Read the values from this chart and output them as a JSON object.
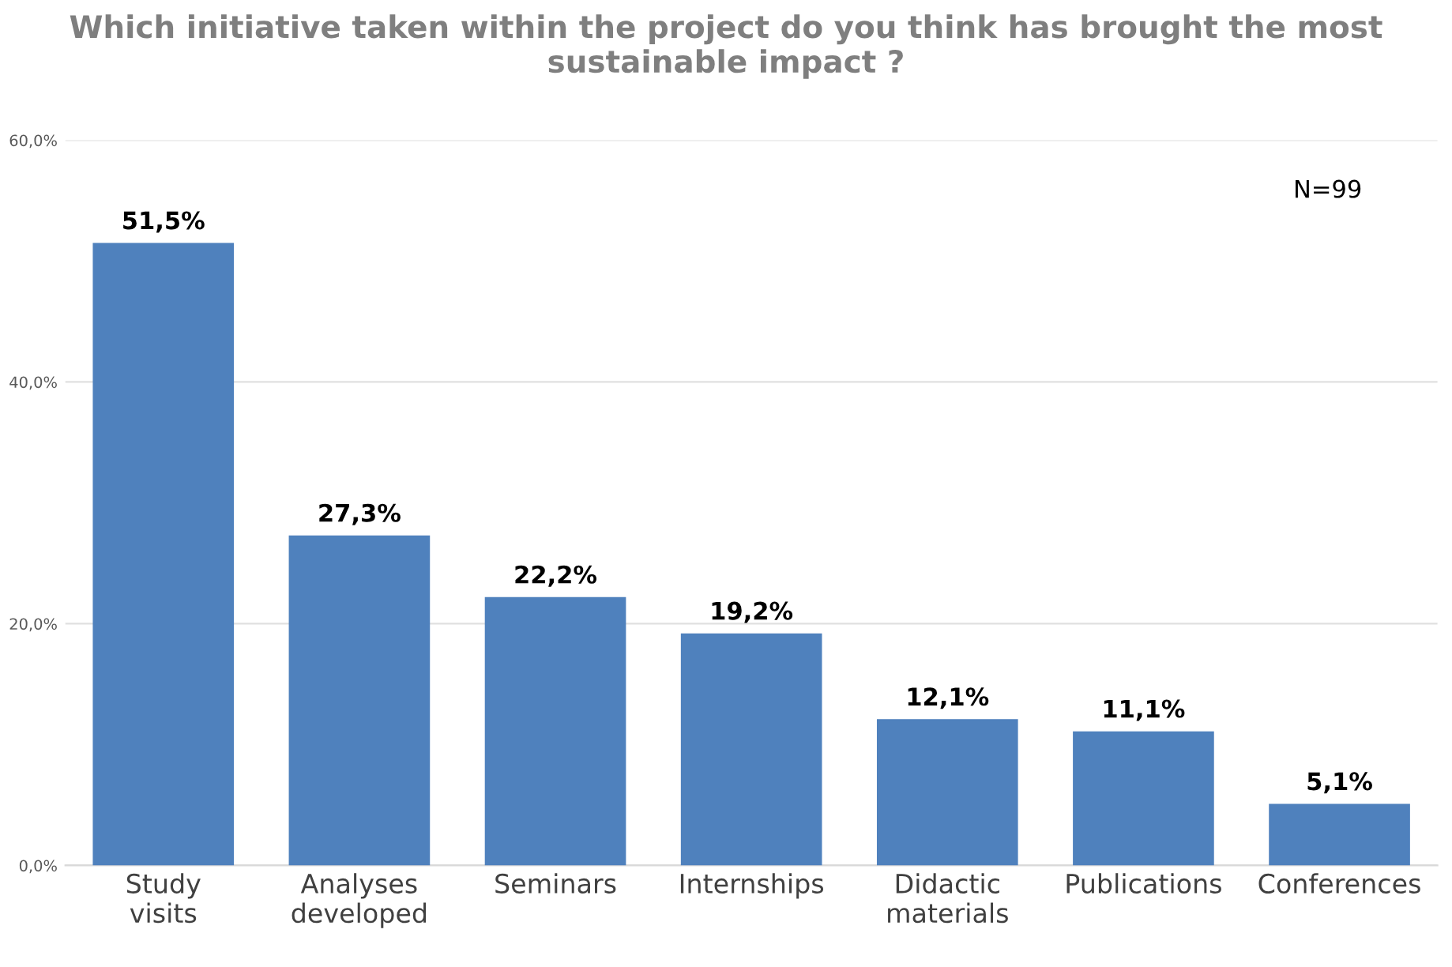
{
  "chart_data": {
    "type": "bar",
    "title": "Which initiative taken within the project do you think has brought the most sustainable impact ?",
    "categories": [
      "Study visits",
      "Analyses developed",
      "Seminars",
      "Internships",
      "Didactic materials",
      "Publications",
      "Conferences"
    ],
    "values": [
      51.5,
      27.3,
      22.2,
      19.2,
      12.1,
      11.1,
      5.1
    ],
    "value_labels": [
      "51,5%",
      "27,3%",
      "22,2%",
      "19,2%",
      "12,1%",
      "11,1%",
      "5,1%"
    ],
    "color": "#4f81bd",
    "ylim": [
      0,
      60
    ],
    "yticks": [
      {
        "value": 0,
        "label": "0,0%"
      },
      {
        "value": 20,
        "label": "20,0%"
      },
      {
        "value": 40,
        "label": "40,0%"
      },
      {
        "value": 60,
        "label": "60,0%"
      }
    ],
    "grid": "y",
    "annotations": [
      "N=99"
    ]
  }
}
